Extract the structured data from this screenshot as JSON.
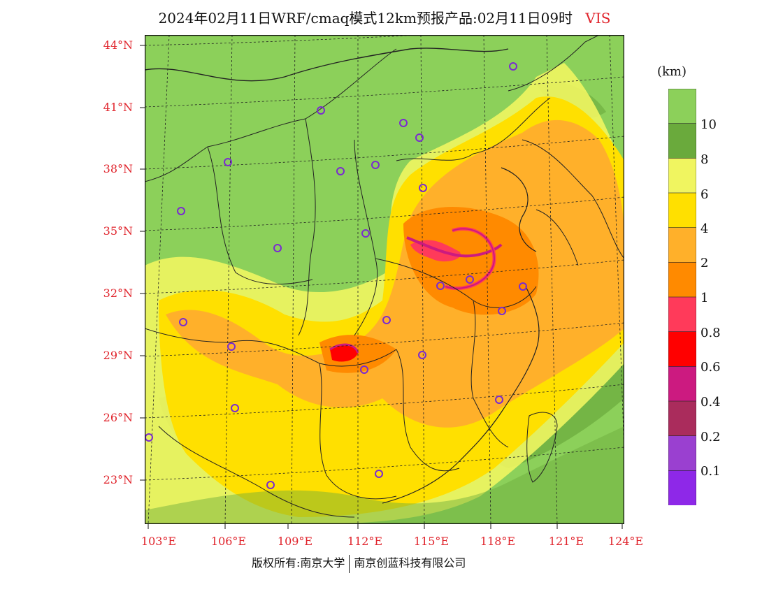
{
  "title": {
    "main": "2024年02月11日WRF/cmaq模式12km预报产品:02月11日09时",
    "variable": "VIS"
  },
  "map": {
    "lat_labels": [
      "44°N",
      "41°N",
      "38°N",
      "35°N",
      "32°N",
      "29°N",
      "26°N",
      "23°N"
    ],
    "lon_labels": [
      "103°E",
      "106°E",
      "109°E",
      "112°E",
      "115°E",
      "118°E",
      "121°E",
      "124°E"
    ],
    "station_marker_color": "#7a2bd0"
  },
  "colorbar": {
    "unit": "(km)",
    "labels": [
      "10",
      "8",
      "6",
      "4",
      "2",
      "1",
      "0.8",
      "0.6",
      "0.4",
      "0.2",
      "0.1"
    ],
    "colors": [
      "#8cd05a",
      "#6aaa3c",
      "#f0f560",
      "#ffe000",
      "#ffb02a",
      "#ff8a00",
      "#ff3a5a",
      "#ff0000",
      "#cc1a80",
      "#aa2c5c",
      "#9a40d0",
      "#8e28e8"
    ]
  },
  "footer": {
    "copyright": "版权所有:南京大学",
    "company": "南京创蓝科技有限公司"
  }
}
